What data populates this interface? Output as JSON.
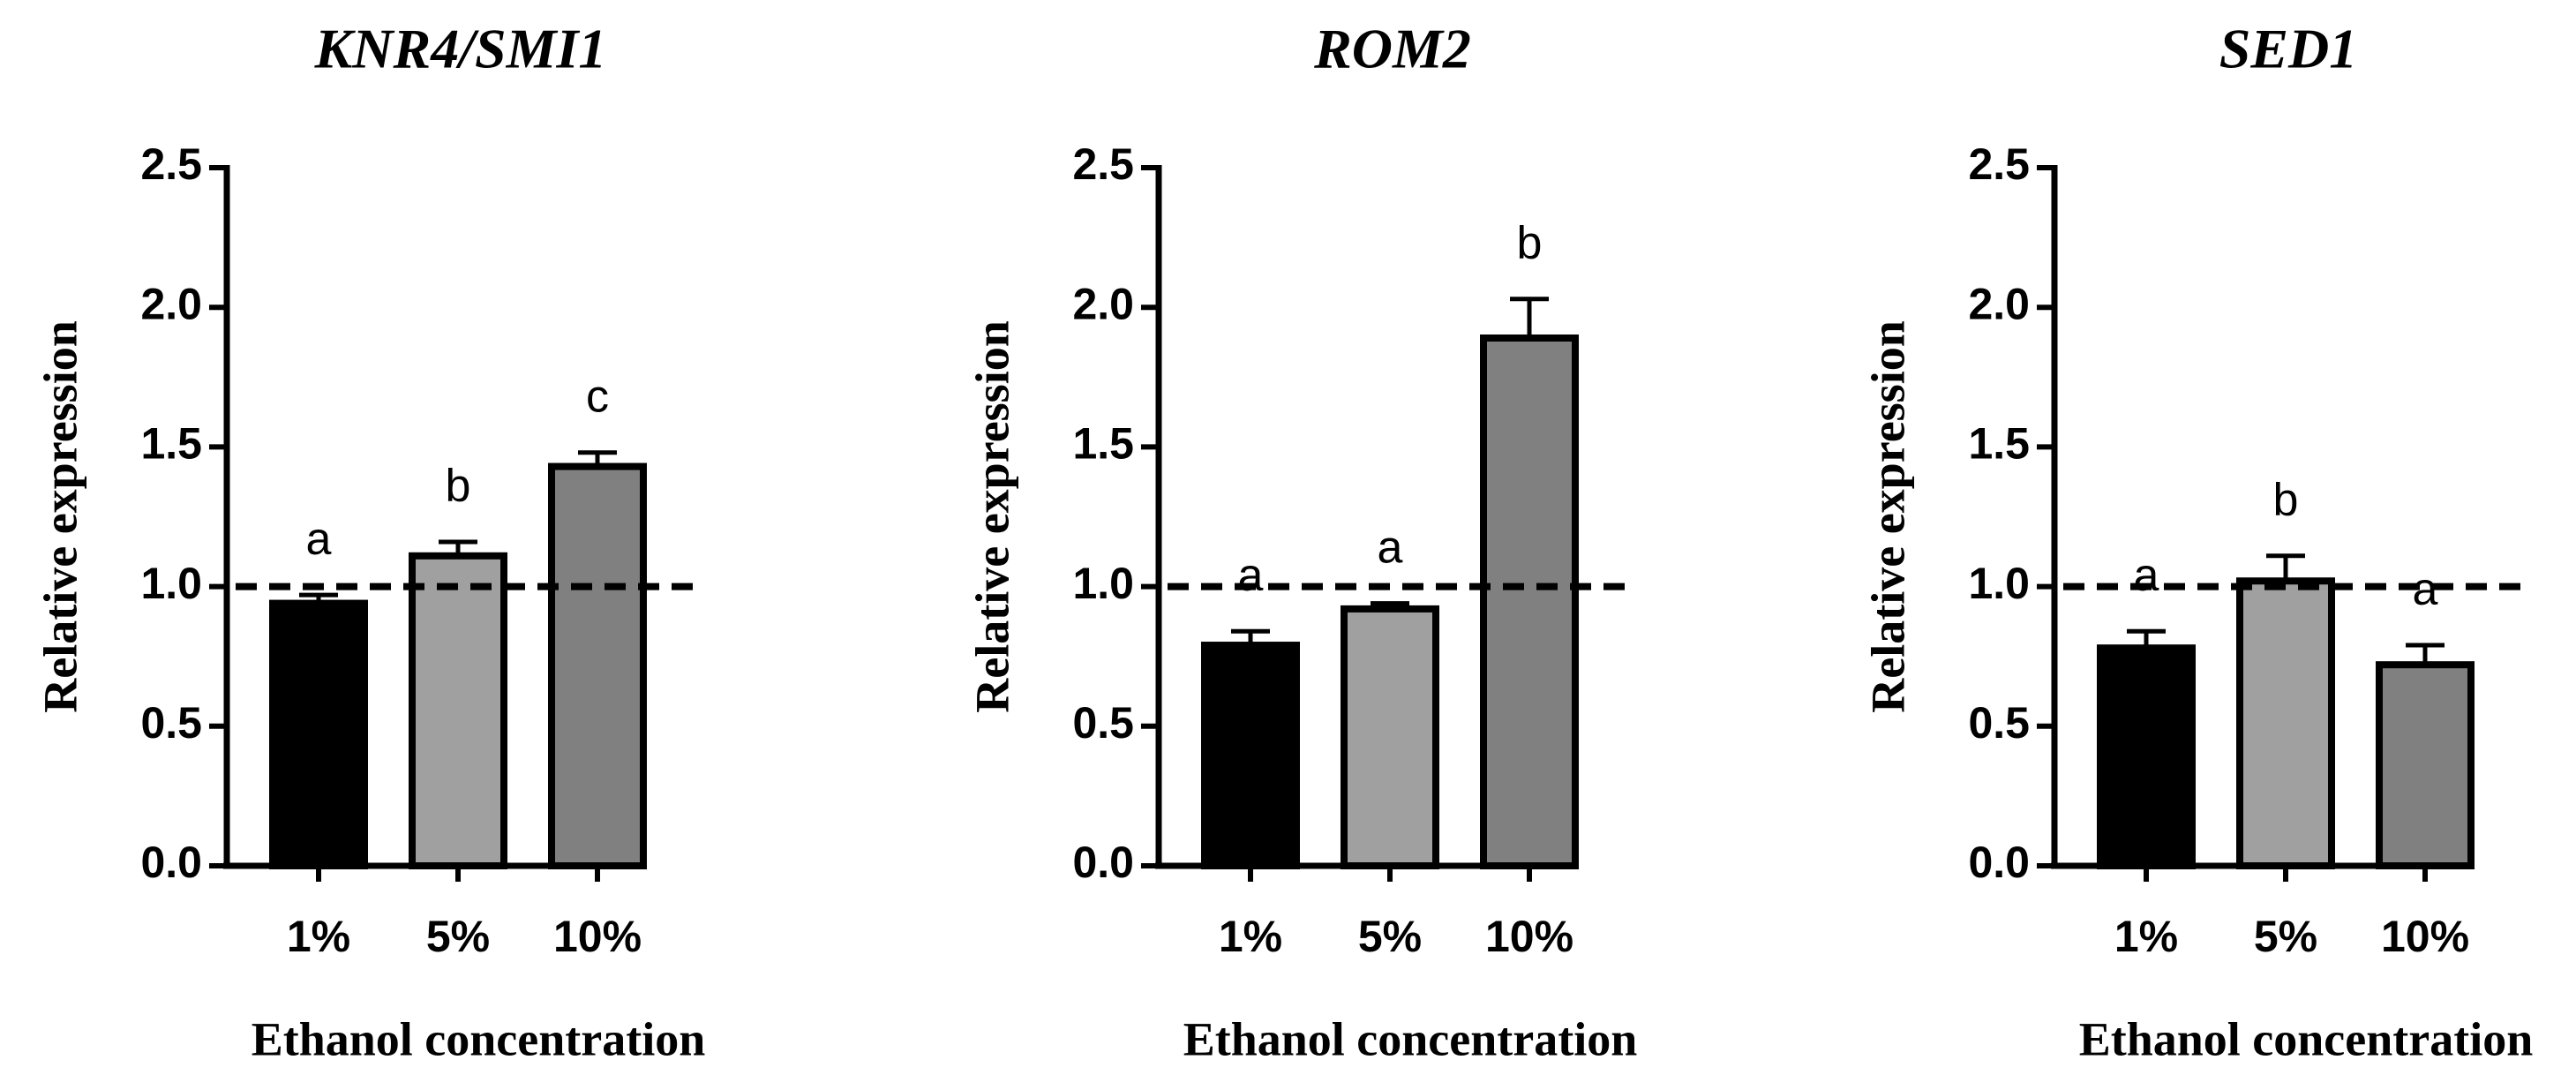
{
  "chart_data": [
    {
      "type": "bar",
      "title": "KNR4/SMI1",
      "xlabel": "Ethanol concentration",
      "ylabel": "Relative expression",
      "categories": [
        "1%",
        "5%",
        "10%"
      ],
      "values": [
        0.94,
        1.11,
        1.43
      ],
      "errors": [
        0.03,
        0.05,
        0.05
      ],
      "annotations": [
        "a",
        "b",
        "c"
      ],
      "colors": [
        "#000000",
        "#a0a0a0",
        "#808080"
      ],
      "reference_line": 1.0,
      "ylim": [
        0,
        2.5
      ],
      "yticks": [
        {
          "value": 0,
          "label": "0.0"
        },
        0.5,
        {
          "value": 1,
          "label": "1.0"
        },
        1.5,
        {
          "value": 2,
          "label": "2.0"
        },
        2.5
      ]
    },
    {
      "type": "bar",
      "title": "ROM2",
      "xlabel": "Ethanol concentration",
      "ylabel": "Relative expression",
      "categories": [
        "1%",
        "5%",
        "10%"
      ],
      "values": [
        0.79,
        0.92,
        1.89
      ],
      "errors": [
        0.05,
        0.02,
        0.14
      ],
      "annotations": [
        "a",
        "a",
        "b"
      ],
      "colors": [
        "#000000",
        "#a0a0a0",
        "#808080"
      ],
      "reference_line": 1.0,
      "ylim": [
        0,
        2.5
      ],
      "yticks": [
        {
          "value": 0,
          "label": "0.0"
        },
        0.5,
        {
          "value": 1,
          "label": "1.0"
        },
        1.5,
        {
          "value": 2,
          "label": "2.0"
        },
        2.5
      ]
    },
    {
      "type": "bar",
      "title": "SED1",
      "xlabel": "Ethanol concentration",
      "ylabel": "Relative expression",
      "categories": [
        "1%",
        "5%",
        "10%"
      ],
      "values": [
        0.78,
        1.02,
        0.72
      ],
      "errors": [
        0.06,
        0.09,
        0.07
      ],
      "annotations": [
        "a",
        "b",
        "a"
      ],
      "colors": [
        "#000000",
        "#a0a0a0",
        "#808080"
      ],
      "reference_line": 1.0,
      "ylim": [
        0,
        2.5
      ],
      "yticks": [
        {
          "value": 0,
          "label": "0.0"
        },
        0.5,
        {
          "value": 1,
          "label": "1.0"
        },
        1.5,
        {
          "value": 2,
          "label": "2.0"
        },
        2.5
      ]
    }
  ]
}
